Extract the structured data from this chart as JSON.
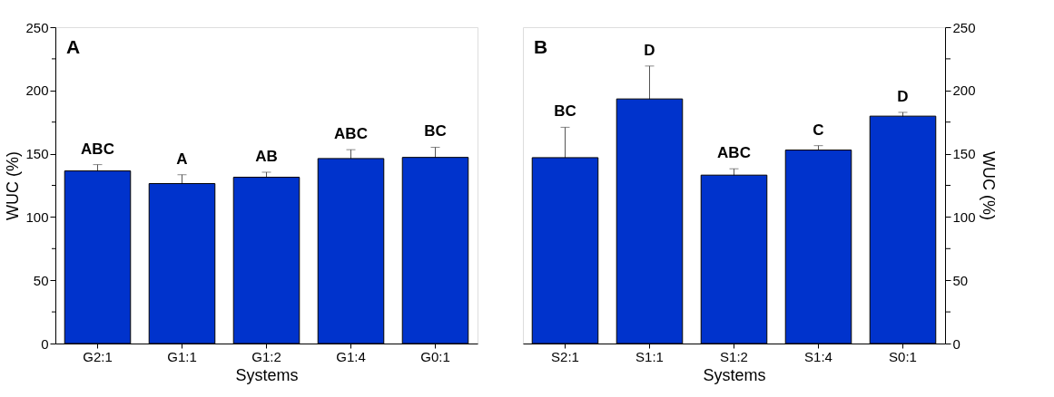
{
  "chart_data": [
    {
      "type": "bar",
      "title": "A",
      "xlabel": "Systems",
      "ylabel": "WUC (%)",
      "categories": [
        "G2:1",
        "G1:1",
        "G1:2",
        "G1:4",
        "G0:1"
      ],
      "series": [
        {
          "color": "#0033cc",
          "values": [
            136.4,
            126.4,
            131.4,
            146.2,
            147.1
          ],
          "errors": [
            5,
            7,
            4,
            7,
            8
          ]
        }
      ],
      "ylim": [
        0,
        250
      ],
      "yticks": [
        0,
        {
          "value": 25,
          "label": null
        },
        50,
        {
          "value": 75,
          "label": null
        },
        100,
        {
          "value": 125,
          "label": null
        },
        150,
        {
          "value": 175,
          "label": null
        },
        200,
        {
          "value": 225,
          "label": null
        },
        250
      ],
      "annotations": [
        "ABC",
        "A",
        "AB",
        "ABC",
        "BC"
      ]
    },
    {
      "type": "bar",
      "title": "B",
      "xlabel": "Systems",
      "y2label": "WUC (%)",
      "categories": [
        "S2:1",
        "S1:1",
        "S1:2",
        "S1:4",
        "S0:1"
      ],
      "series": [
        {
          "color": "#0033cc",
          "axis": "y2",
          "values": [
            146.9,
            193.3,
            133.1,
            152.9,
            179.7
          ],
          "errors": [
            24,
            26,
            5,
            3.5,
            3
          ]
        }
      ],
      "y2lim": [
        0,
        250
      ],
      "y2ticks": [
        0,
        {
          "value": 25,
          "label": null
        },
        50,
        {
          "value": 75,
          "label": null
        },
        100,
        {
          "value": 125,
          "label": null
        },
        150,
        {
          "value": 175,
          "label": null
        },
        200,
        {
          "value": 225,
          "label": null
        },
        250
      ],
      "annotations": [
        "BC",
        "D",
        "ABC",
        "C",
        "D"
      ]
    }
  ]
}
